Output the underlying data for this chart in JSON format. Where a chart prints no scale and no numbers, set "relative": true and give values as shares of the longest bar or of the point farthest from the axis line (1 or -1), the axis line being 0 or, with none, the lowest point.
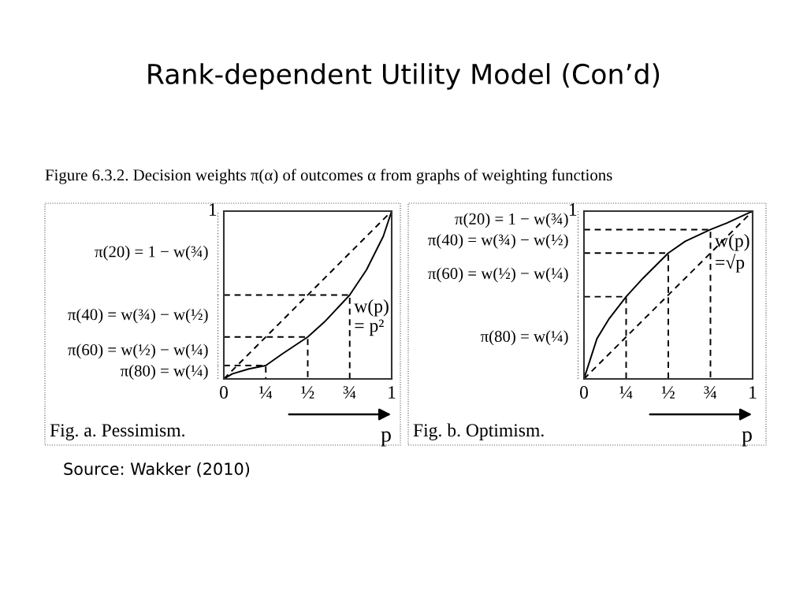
{
  "chart_data": [
    {
      "type": "line",
      "title": "Rank-dependent Utility Model (Con’d)",
      "subtitle": "Figure 6.3.2. Decision weights π(α) of outcomes α from graphs of weighting functions",
      "xlabel": "p",
      "relative": true,
      "series": [
        {
          "color": "#000000",
          "line_style": "solid",
          "x": [
            0,
            0.05,
            0.15,
            0.25,
            0.35,
            0.5,
            0.6,
            0.75,
            0.85,
            0.95,
            1
          ],
          "values": [
            0,
            0.03,
            0.06,
            0.08,
            0.15,
            0.25,
            0.34,
            0.5,
            0.65,
            0.85,
            1
          ]
        },
        {
          "color": "#000000",
          "line_style": "dashed",
          "x": [
            0,
            1
          ],
          "values": [
            0,
            1
          ]
        },
        {
          "color": "#000000",
          "line_style": "dashed",
          "x": [
            0,
            0.25,
            0.25
          ],
          "values": [
            0.08,
            0.08,
            0
          ]
        },
        {
          "color": "#000000",
          "line_style": "dashed",
          "x": [
            0,
            0.5,
            0.5
          ],
          "values": [
            0.25,
            0.25,
            0
          ]
        },
        {
          "color": "#000000",
          "line_style": "dashed",
          "x": [
            0,
            0.75,
            0.75
          ],
          "values": [
            0.5,
            0.5,
            0
          ]
        }
      ],
      "xlim": [
        0,
        1
      ],
      "xticks": [
        0,
        {
          "value": 0.25,
          "label": "¼"
        },
        {
          "value": 0.5,
          "label": "½"
        },
        {
          "value": 0.75,
          "label": "¾"
        },
        1
      ],
      "annotations": [
        "Fig. a. Pessimism.",
        "1",
        "π(20) = 1 − w(¾)",
        "π(40) = w(¾) − w(½)",
        "π(60) = w(½) − w(¼)",
        "π(80) = w(¼)",
        "Source: Wakker (2010)",
        {
          "text": "w(p)\n= p²",
          "x": 0.75,
          "y": 0.5
        }
      ],
      "grid": false,
      "legend": false,
      "marker": "none"
    },
    {
      "type": "line",
      "xlabel": "p",
      "relative": true,
      "series": [
        {
          "color": "#000000",
          "line_style": "solid",
          "x": [
            0,
            0.077,
            0.15,
            0.25,
            0.35,
            0.5,
            0.6,
            0.75,
            0.85,
            1
          ],
          "values": [
            0,
            0.24,
            0.36,
            0.49,
            0.6,
            0.75,
            0.82,
            0.89,
            0.93,
            1
          ]
        },
        {
          "color": "#000000",
          "line_style": "dashed",
          "x": [
            0,
            1
          ],
          "values": [
            0,
            1
          ]
        },
        {
          "color": "#000000",
          "line_style": "dashed",
          "x": [
            0,
            0.25,
            0.25
          ],
          "values": [
            0.49,
            0.49,
            0
          ]
        },
        {
          "color": "#000000",
          "line_style": "dashed",
          "x": [
            0,
            0.5,
            0.5
          ],
          "values": [
            0.75,
            0.75,
            0
          ]
        },
        {
          "color": "#000000",
          "line_style": "dashed",
          "x": [
            0,
            0.75,
            0.75
          ],
          "values": [
            0.89,
            0.89,
            0
          ]
        }
      ],
      "xlim": [
        0,
        1
      ],
      "xticks": [
        0,
        {
          "value": 0.25,
          "label": "¼"
        },
        {
          "value": 0.5,
          "label": "½"
        },
        {
          "value": 0.75,
          "label": "¾"
        },
        1
      ],
      "annotations": [
        "Fig. b. Optimism.",
        "1",
        "π(20) = 1 − w(¾)",
        "π(40) = w(¾) − w(½)",
        "π(60) = w(½) − w(¼)",
        "π(80) = w(¼)",
        {
          "text": "w(p)\n=√p",
          "x": 0.75,
          "y": 0.89
        }
      ],
      "grid": false,
      "legend": false,
      "marker": "none"
    }
  ]
}
